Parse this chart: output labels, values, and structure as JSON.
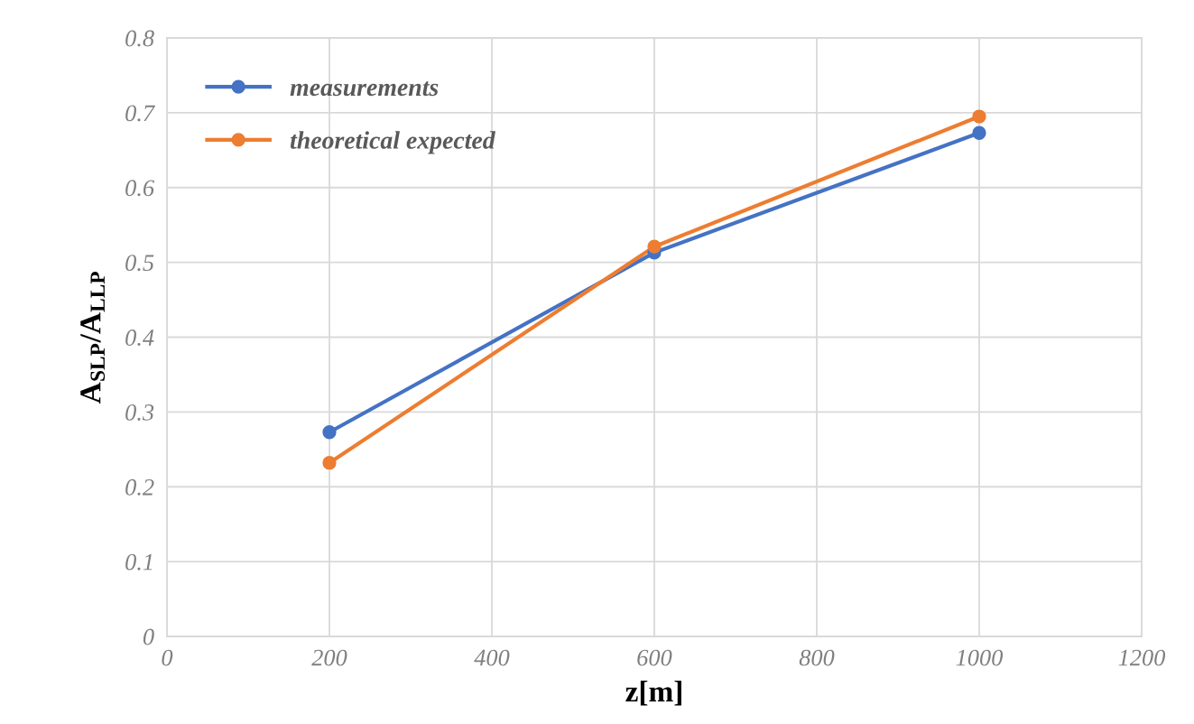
{
  "chart_data": {
    "type": "line",
    "xlabel": "z[m]",
    "ylabel": "A$_{SLP}$/A$_{LLP}$",
    "x": [
      200,
      600,
      1000
    ],
    "series": [
      {
        "name": "measurements",
        "color": "#4472c4",
        "values": [
          0.273,
          0.513,
          0.673
        ]
      },
      {
        "name": "theoretical expected",
        "color": "#ed7d31",
        "values": [
          0.232,
          0.521,
          0.695
        ]
      }
    ],
    "xlim": [
      0,
      1200
    ],
    "xticks": [
      0,
      200,
      400,
      600,
      800,
      1000,
      1200
    ],
    "ylim": [
      0,
      0.8
    ],
    "yticks": [
      0,
      0.1,
      0.2,
      0.3,
      0.4,
      0.5,
      0.6,
      0.7,
      0.8
    ],
    "grid": true,
    "legend": "top left",
    "marker": "circle",
    "line_style": "solid"
  }
}
